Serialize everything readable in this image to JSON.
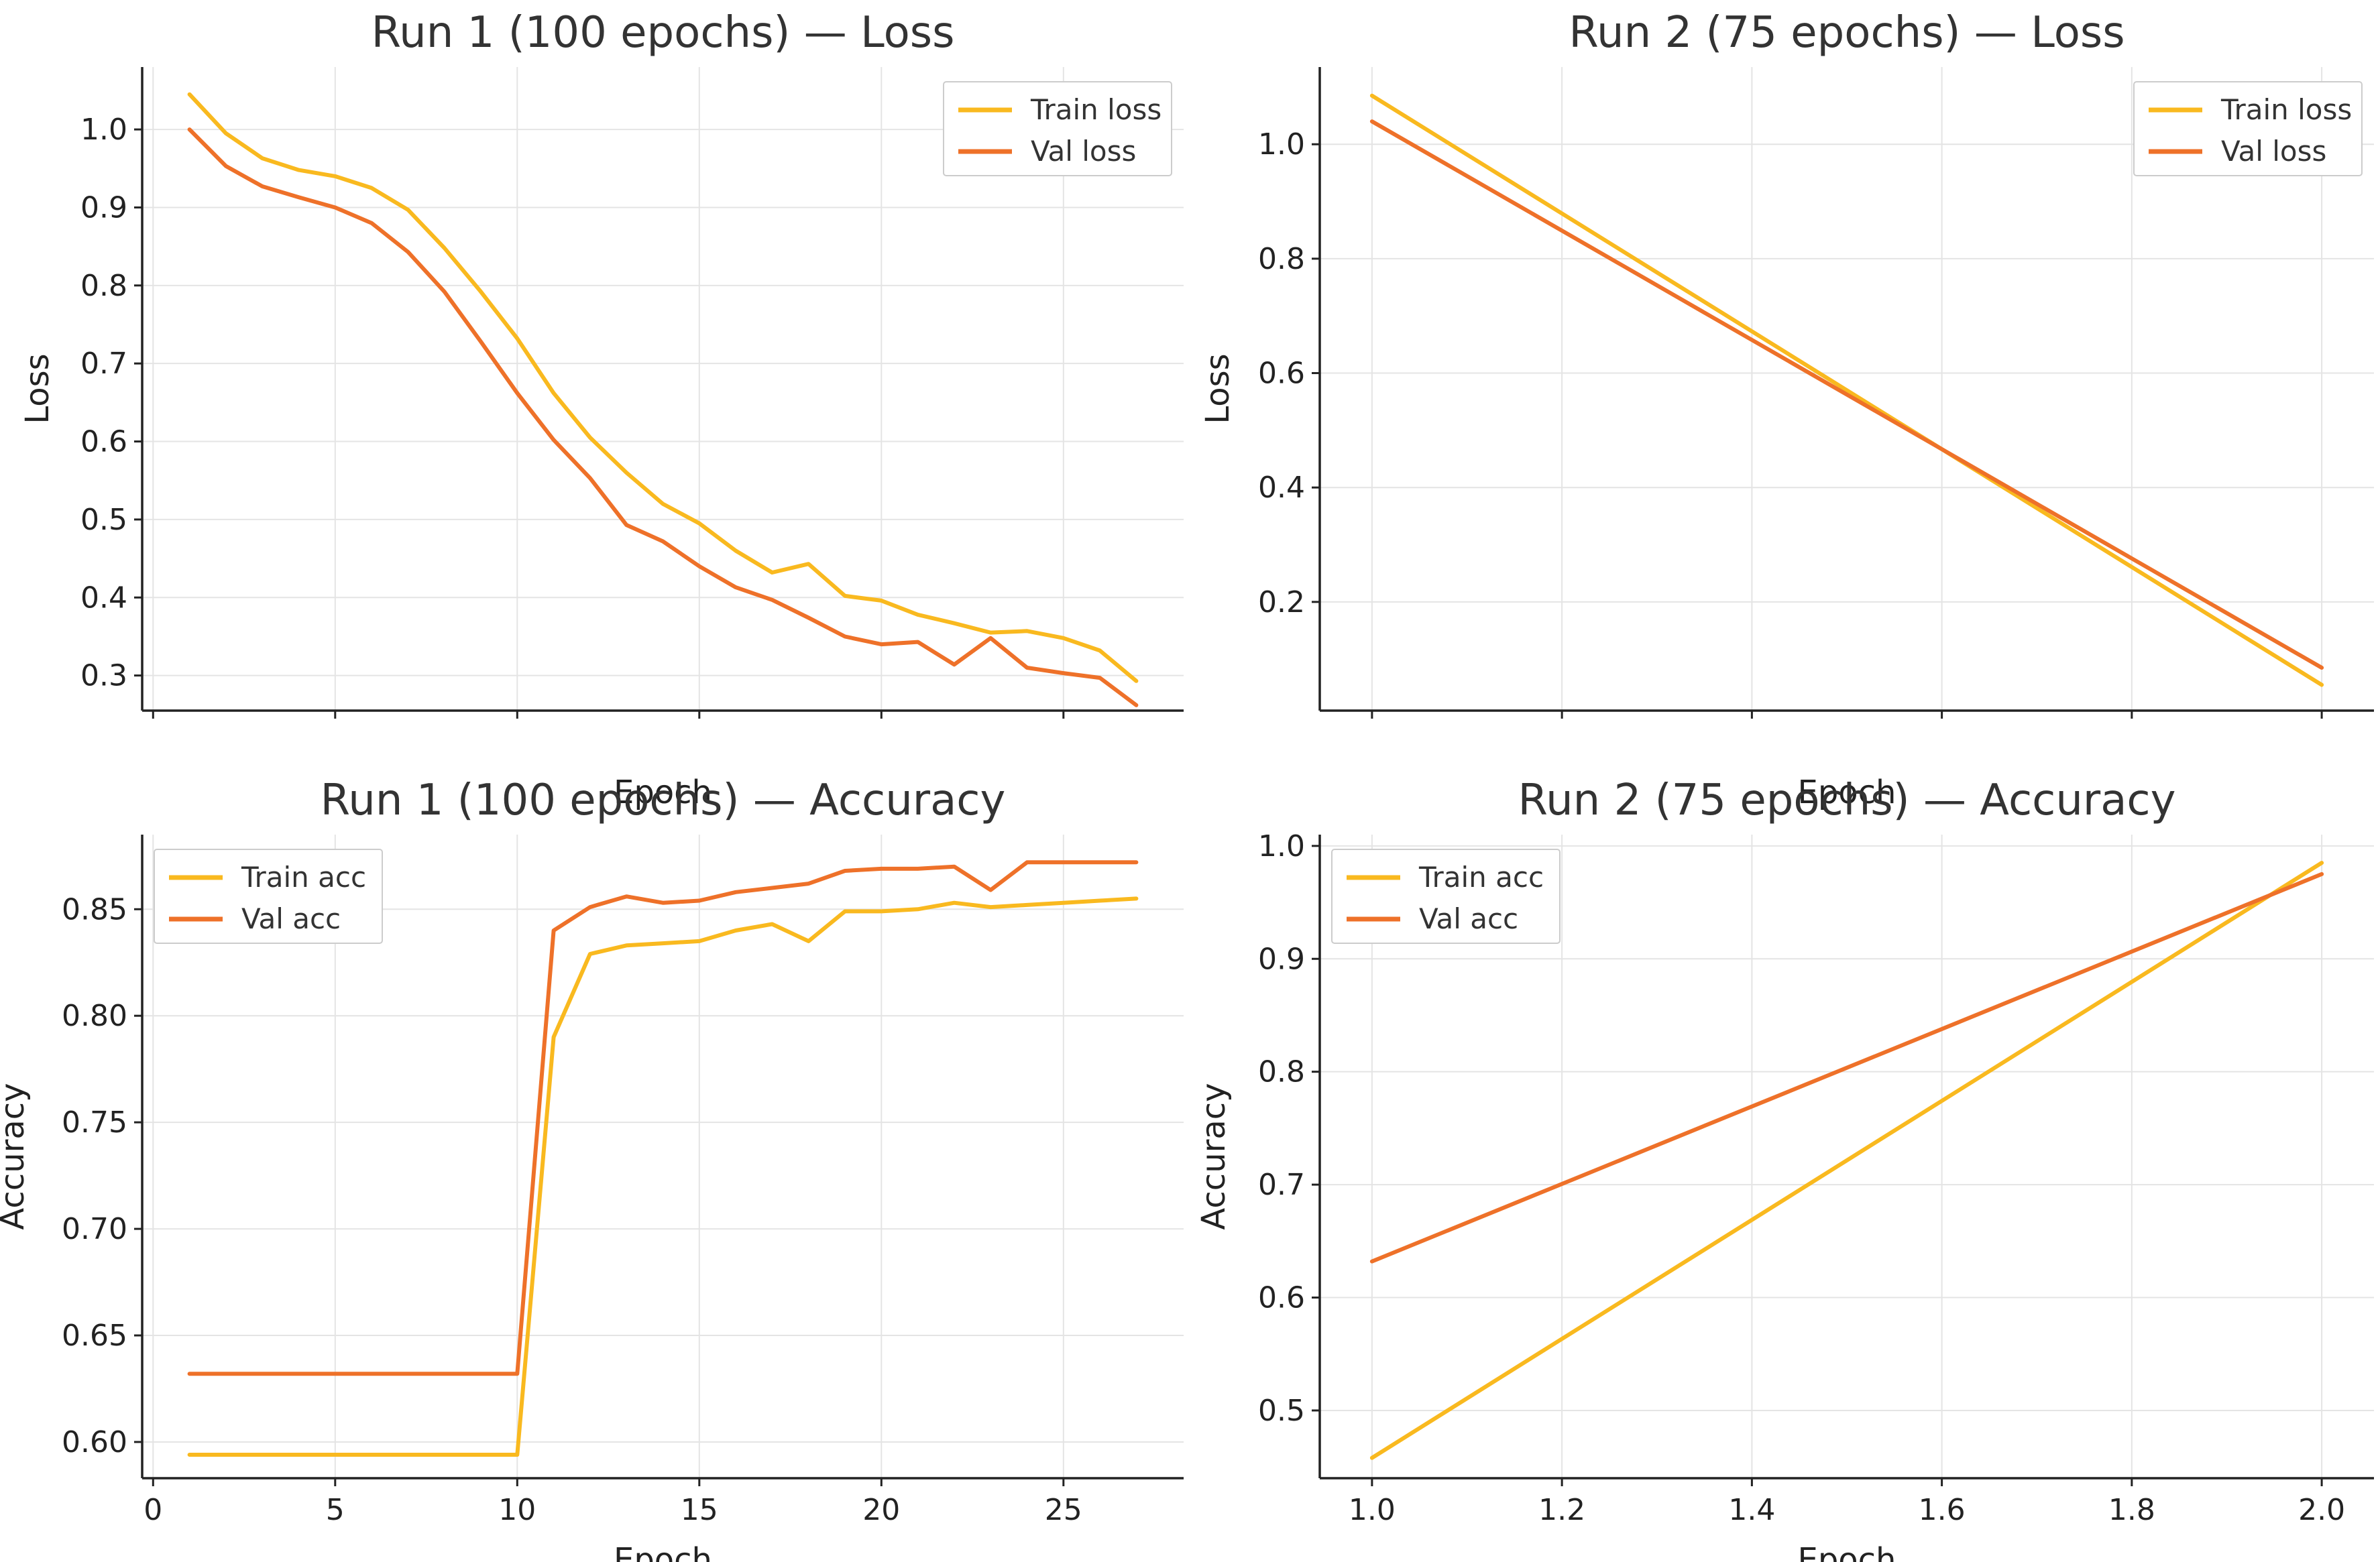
{
  "colors": {
    "train": "#F9B91F",
    "val": "#EE7129"
  },
  "chart_data": [
    {
      "type": "line",
      "title": "Run 1 (100 epochs) — Loss",
      "xlabel": "Epoch",
      "ylabel": "Loss",
      "xlim": [
        -0.3,
        28.3
      ],
      "ylim": [
        0.255,
        1.08
      ],
      "xticks": [
        0,
        5,
        10,
        15,
        20,
        25
      ],
      "xticklabels": [
        "",
        "",
        "",
        "",
        "",
        ""
      ],
      "yticks": [
        0.3,
        0.4,
        0.5,
        0.6,
        0.7,
        0.8,
        0.9,
        1.0
      ],
      "yticklabels": [
        "0.3",
        "0.4",
        "0.5",
        "0.6",
        "0.7",
        "0.8",
        "0.9",
        "1.0"
      ],
      "grid": true,
      "legend_position": "top-right",
      "x": [
        1,
        2,
        3,
        4,
        5,
        6,
        7,
        8,
        9,
        10,
        11,
        12,
        13,
        14,
        15,
        16,
        17,
        18,
        19,
        20,
        21,
        22,
        23,
        24,
        25,
        26,
        27
      ],
      "series": [
        {
          "name": "Train loss",
          "color_key": "train",
          "values": [
            1.045,
            0.995,
            0.963,
            0.948,
            0.94,
            0.925,
            0.897,
            0.848,
            0.792,
            0.732,
            0.662,
            0.605,
            0.56,
            0.52,
            0.495,
            0.46,
            0.432,
            0.443,
            0.402,
            0.396,
            0.378,
            0.367,
            0.355,
            0.357,
            0.348,
            0.332,
            0.293
          ]
        },
        {
          "name": "Val loss",
          "color_key": "val",
          "values": [
            1.0,
            0.953,
            0.927,
            0.913,
            0.9,
            0.88,
            0.843,
            0.792,
            0.728,
            0.662,
            0.602,
            0.553,
            0.493,
            0.472,
            0.44,
            0.413,
            0.397,
            0.374,
            0.35,
            0.34,
            0.343,
            0.314,
            0.348,
            0.31,
            0.303,
            0.297,
            0.262
          ]
        }
      ]
    },
    {
      "type": "line",
      "title": "Run 2 (75 epochs) — Loss",
      "xlabel": "Epoch",
      "ylabel": "Loss",
      "xlim": [
        0.945,
        2.055
      ],
      "ylim": [
        0.01,
        1.135
      ],
      "xticks": [
        1.0,
        1.2,
        1.4,
        1.6,
        1.8,
        2.0
      ],
      "xticklabels": [
        "",
        "",
        "",
        "",
        "",
        ""
      ],
      "yticks": [
        0.2,
        0.4,
        0.6,
        0.8,
        1.0
      ],
      "yticklabels": [
        "0.2",
        "0.4",
        "0.6",
        "0.8",
        "1.0"
      ],
      "grid": true,
      "legend_position": "top-right",
      "x": [
        1.0,
        2.0
      ],
      "series": [
        {
          "name": "Train loss",
          "color_key": "train",
          "values": [
            1.085,
            0.055
          ]
        },
        {
          "name": "Val loss",
          "color_key": "val",
          "values": [
            1.04,
            0.085
          ]
        }
      ]
    },
    {
      "type": "line",
      "title": "Run 1 (100 epochs) — Accuracy",
      "xlabel": "Epoch",
      "ylabel": "Accuracy",
      "xlim": [
        -0.3,
        28.3
      ],
      "ylim": [
        0.583,
        0.885
      ],
      "xticks": [
        0,
        5,
        10,
        15,
        20,
        25
      ],
      "xticklabels": [
        "0",
        "5",
        "10",
        "15",
        "20",
        "25"
      ],
      "yticks": [
        0.6,
        0.65,
        0.7,
        0.75,
        0.8,
        0.85
      ],
      "yticklabels": [
        "0.60",
        "0.65",
        "0.70",
        "0.75",
        "0.80",
        "0.85"
      ],
      "grid": true,
      "legend_position": "top-left",
      "x": [
        1,
        2,
        3,
        4,
        5,
        6,
        7,
        8,
        9,
        10,
        11,
        12,
        13,
        14,
        15,
        16,
        17,
        18,
        19,
        20,
        21,
        22,
        23,
        24,
        25,
        26,
        27
      ],
      "series": [
        {
          "name": "Train acc",
          "color_key": "train",
          "values": [
            0.594,
            0.594,
            0.594,
            0.594,
            0.594,
            0.594,
            0.594,
            0.594,
            0.594,
            0.594,
            0.79,
            0.829,
            0.833,
            0.834,
            0.835,
            0.84,
            0.843,
            0.835,
            0.849,
            0.849,
            0.85,
            0.853,
            0.851,
            0.852,
            0.853,
            0.854,
            0.855
          ]
        },
        {
          "name": "Val acc",
          "color_key": "val",
          "values": [
            0.632,
            0.632,
            0.632,
            0.632,
            0.632,
            0.632,
            0.632,
            0.632,
            0.632,
            0.632,
            0.84,
            0.851,
            0.856,
            0.853,
            0.854,
            0.858,
            0.86,
            0.862,
            0.868,
            0.869,
            0.869,
            0.87,
            0.859,
            0.872,
            0.872,
            0.872,
            0.872
          ]
        }
      ]
    },
    {
      "type": "line",
      "title": "Run 2 (75 epochs) — Accuracy",
      "xlabel": "Epoch",
      "ylabel": "Accuracy",
      "xlim": [
        0.945,
        2.055
      ],
      "ylim": [
        0.44,
        1.01
      ],
      "xticks": [
        1.0,
        1.2,
        1.4,
        1.6,
        1.8,
        2.0
      ],
      "xticklabels": [
        "1.0",
        "1.2",
        "1.4",
        "1.6",
        "1.8",
        "2.0"
      ],
      "yticks": [
        0.5,
        0.6,
        0.7,
        0.8,
        0.9,
        1.0
      ],
      "yticklabels": [
        "0.5",
        "0.6",
        "0.7",
        "0.8",
        "0.9",
        "1.0"
      ],
      "grid": true,
      "legend_position": "top-left",
      "x": [
        1.0,
        2.0
      ],
      "series": [
        {
          "name": "Train acc",
          "color_key": "train",
          "values": [
            0.458,
            0.985
          ]
        },
        {
          "name": "Val acc",
          "color_key": "val",
          "values": [
            0.632,
            0.975
          ]
        }
      ]
    }
  ]
}
